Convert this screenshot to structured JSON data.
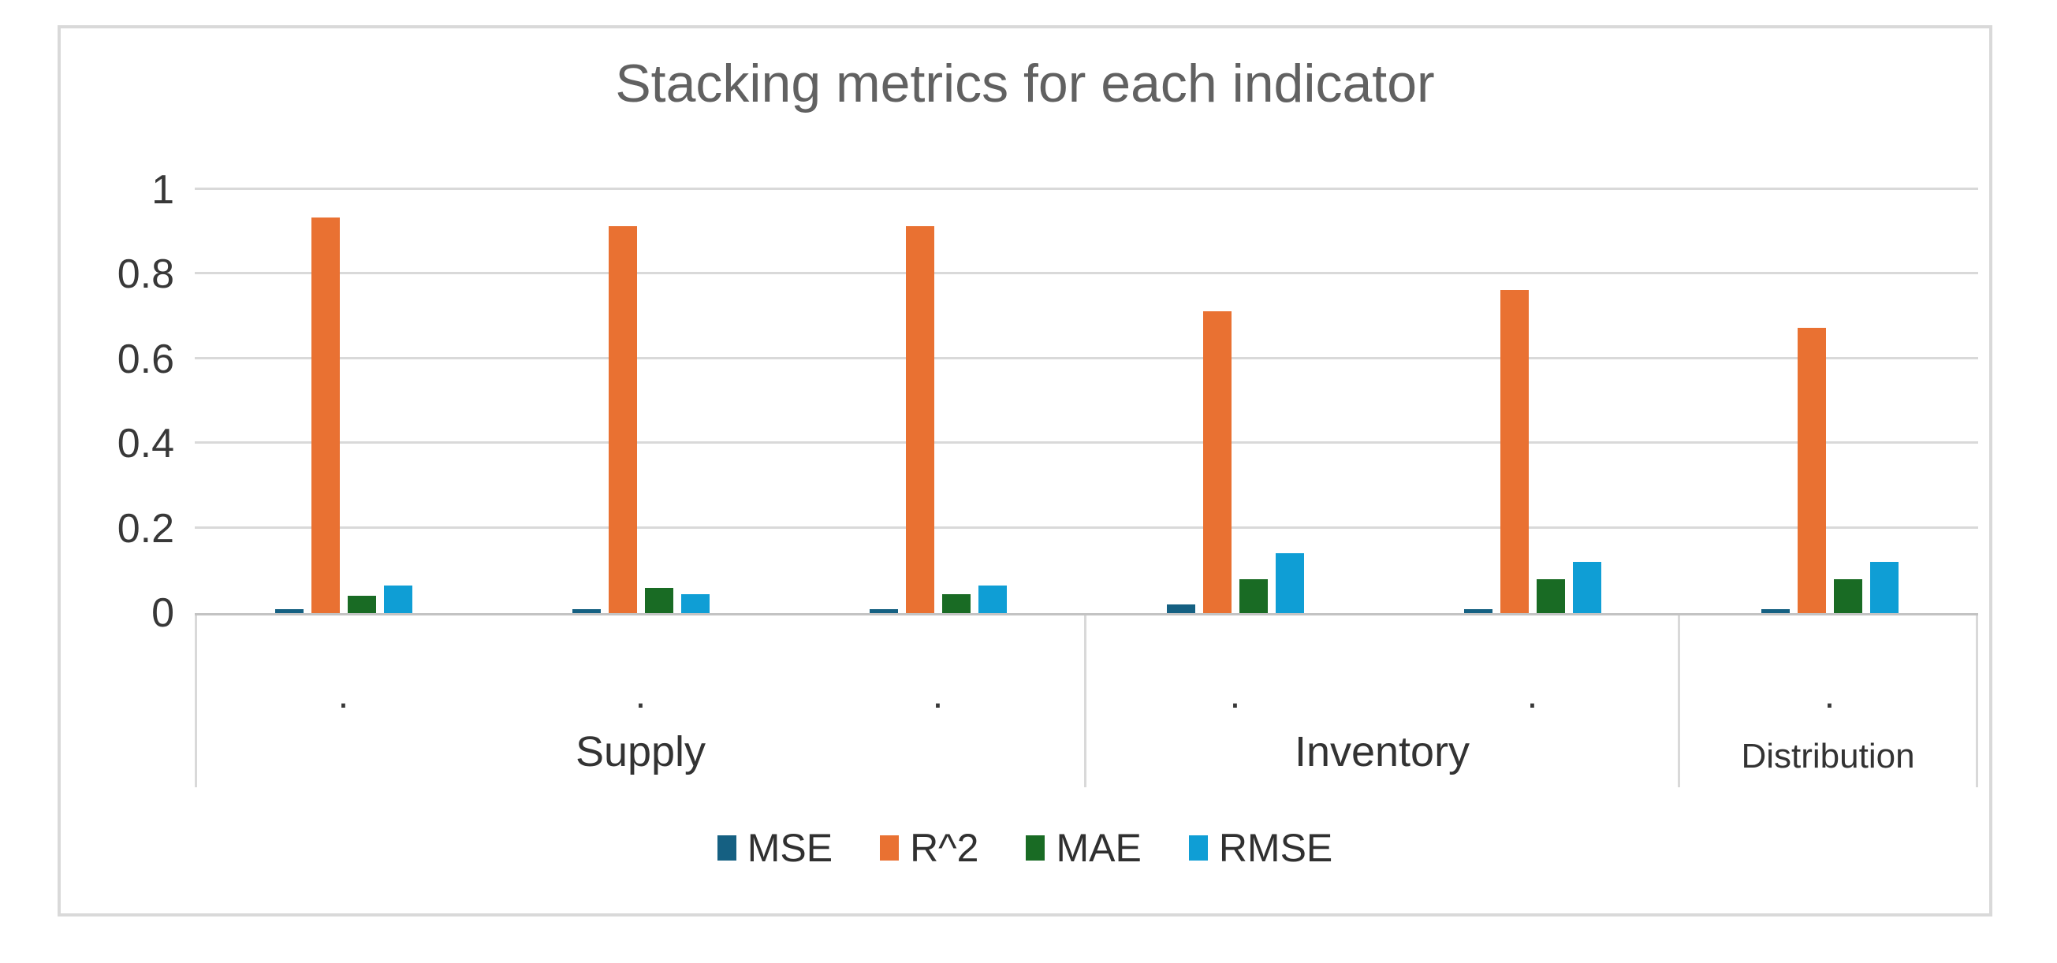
{
  "chart": {
    "colors": {
      "frame-border": "#D9D9D9",
      "gridline": "#D9D9D9",
      "axis-line": "#C3C3C3",
      "title-text": "#616161",
      "tick-text": "#383838",
      "label-text": "#333333",
      "background": "#FFFFFF"
    }
  },
  "chart_data": {
    "type": "bar",
    "title": "Stacking metrics for each indicator",
    "xlabel": "",
    "ylabel": "",
    "ylim": [
      0,
      1
    ],
    "grid": true,
    "legend_position": "bottom",
    "y_ticks": [
      0,
      0.2,
      0.4,
      0.6,
      0.8,
      1
    ],
    "y_tick_labels": [
      "0",
      "0.2",
      "0.4",
      "0.6",
      "0.8",
      "1"
    ],
    "categories": [
      {
        "group": "Supply",
        "ticks": [
          ".",
          ".",
          "."
        ]
      },
      {
        "group": "Inventory",
        "ticks": [
          ".",
          "."
        ]
      },
      {
        "group": "Distribution",
        "ticks": [
          "."
        ]
      }
    ],
    "series": [
      {
        "name": "MSE",
        "color": "#156082",
        "values": [
          0.01,
          0.01,
          0.01,
          0.02,
          0.01,
          0.01
        ]
      },
      {
        "name": "R^2",
        "color": "#E97132",
        "values": [
          0.93,
          0.91,
          0.91,
          0.71,
          0.76,
          0.67
        ]
      },
      {
        "name": "MAE",
        "color": "#196B24",
        "values": [
          0.04,
          0.06,
          0.045,
          0.08,
          0.08,
          0.08
        ]
      },
      {
        "name": "RMSE",
        "color": "#0F9ED5",
        "values": [
          0.065,
          0.045,
          0.065,
          0.14,
          0.12,
          0.12
        ]
      }
    ]
  }
}
